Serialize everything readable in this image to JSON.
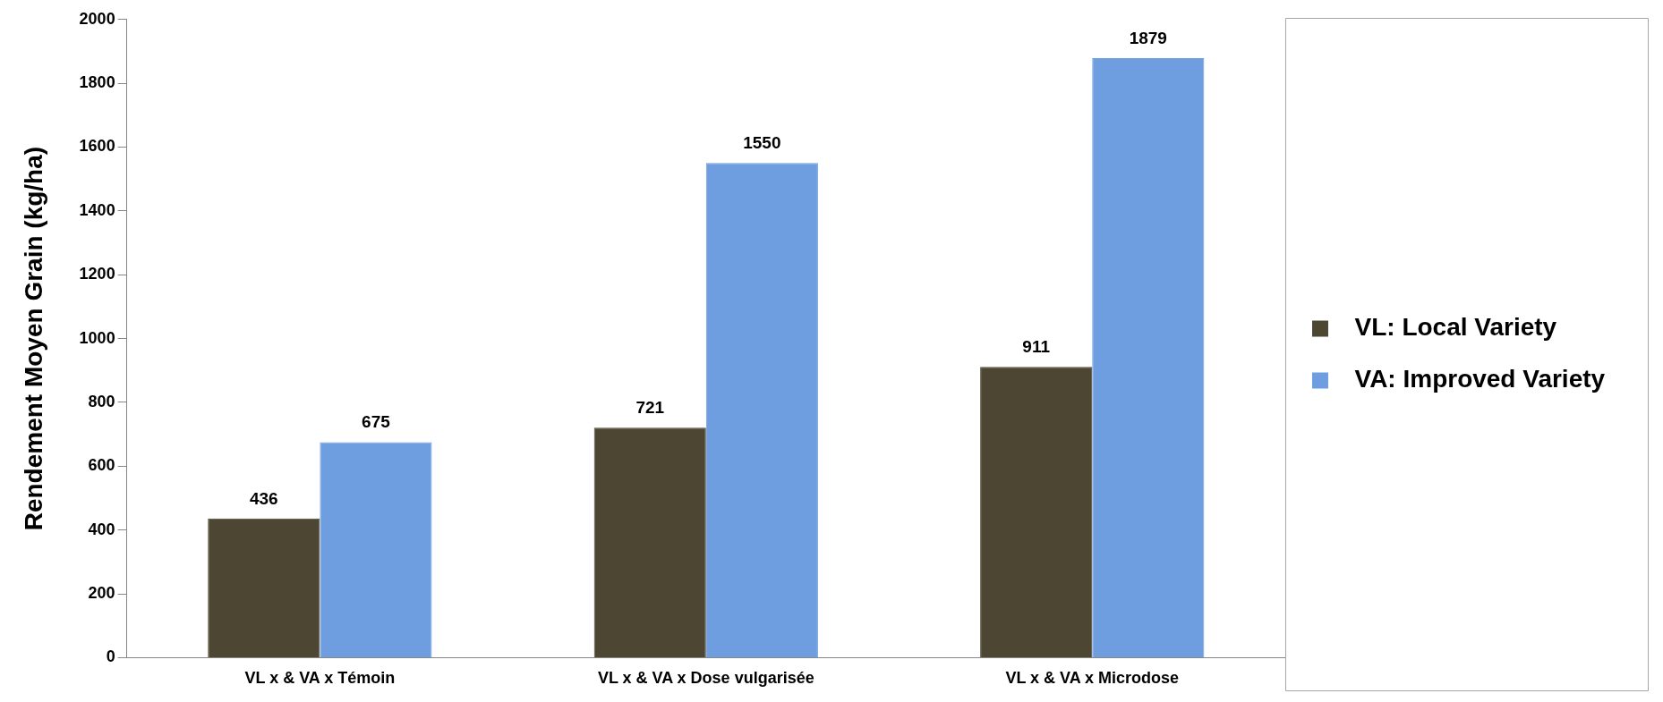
{
  "chart_data": {
    "type": "bar",
    "ylabel": "Rendement Moyen Grain (kg/ha)",
    "categories": [
      "VL x & VA x Témoin",
      "VL x & VA x Dose vulgarisée",
      "VL x & VA x Microdose"
    ],
    "series": [
      {
        "name": "VL: Local Variety",
        "color": "#4d4632",
        "values": [
          436,
          721,
          911
        ]
      },
      {
        "name": "VA: Improved Variety",
        "color": "#6f9ee0",
        "values": [
          675,
          1550,
          1879
        ]
      }
    ],
    "ylim": [
      0,
      2000
    ],
    "yticks": [
      0,
      200,
      400,
      600,
      800,
      1000,
      1200,
      1400,
      1600,
      1800,
      2000
    ],
    "grid": false,
    "legend": "right",
    "data_labels": true
  }
}
